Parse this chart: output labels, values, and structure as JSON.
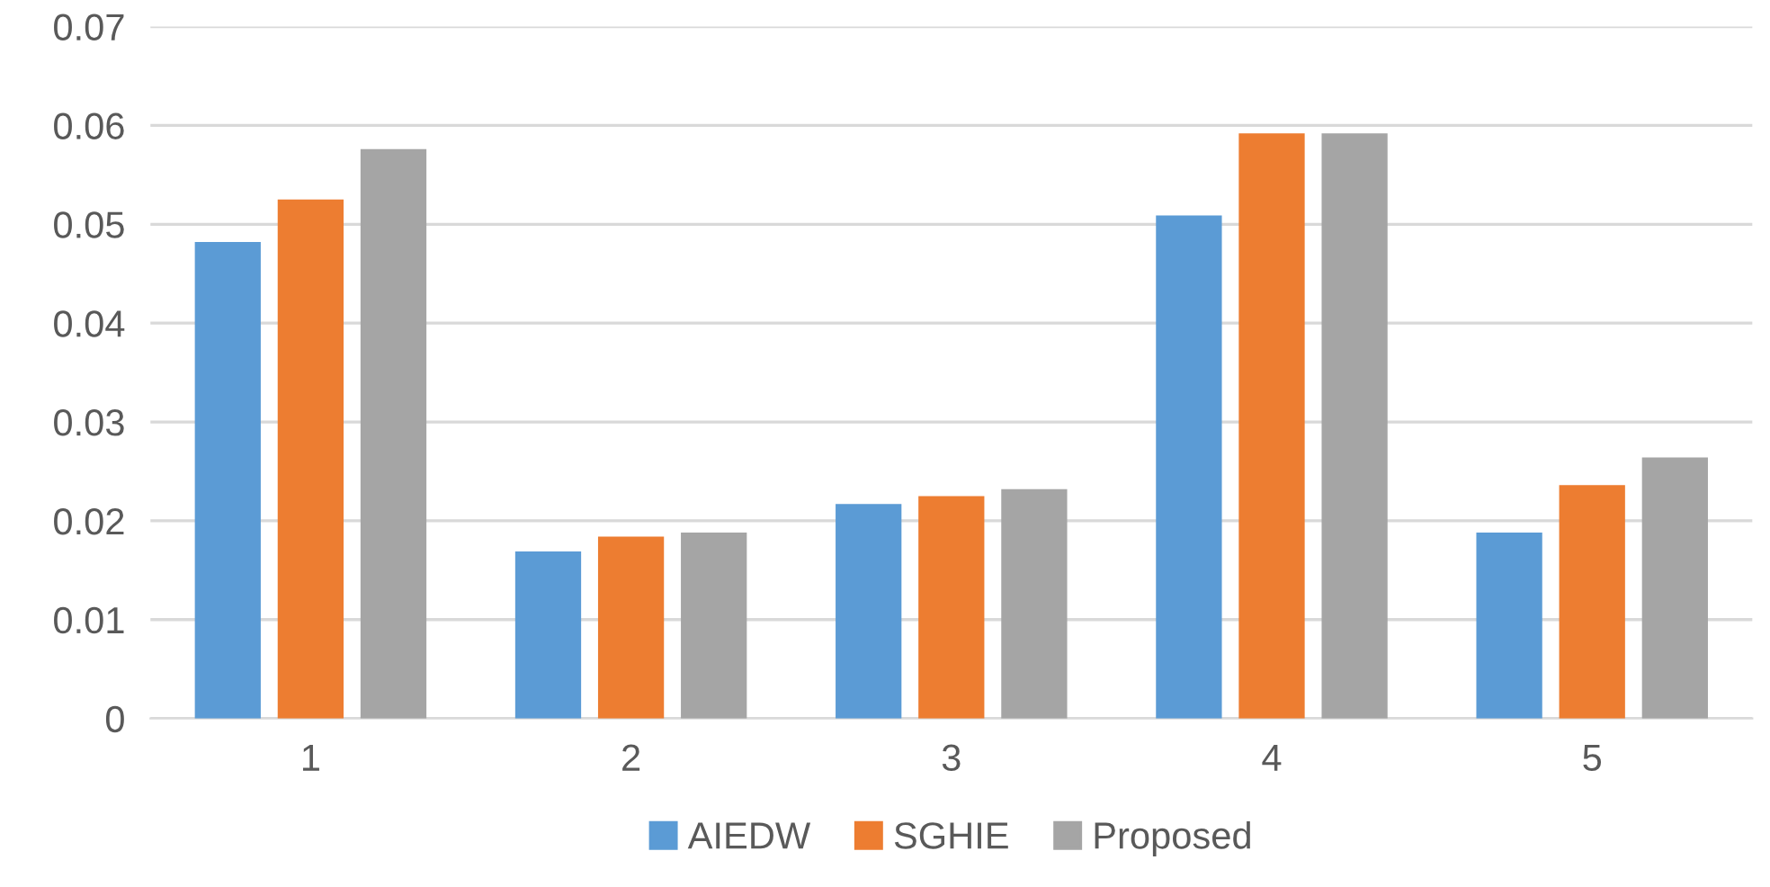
{
  "chart_data": {
    "type": "bar",
    "categories": [
      "1",
      "2",
      "3",
      "4",
      "5"
    ],
    "series": [
      {
        "name": "AIEDW",
        "color": "#5b9bd5",
        "values": [
          0.0482,
          0.0169,
          0.0217,
          0.0509,
          0.0188
        ]
      },
      {
        "name": "SGHIE",
        "color": "#ed7d31",
        "values": [
          0.0525,
          0.0184,
          0.0225,
          0.0592,
          0.0236
        ]
      },
      {
        "name": "Proposed",
        "color": "#a5a5a5",
        "values": [
          0.0576,
          0.0188,
          0.0232,
          0.0592,
          0.0264
        ]
      }
    ],
    "ylim": [
      0,
      0.07
    ],
    "yticks": [
      {
        "value": 0,
        "label": "0"
      },
      0.01,
      0.02,
      0.03,
      0.04,
      0.05,
      0.06,
      0.07
    ],
    "grid": "y",
    "legend": "bottom"
  }
}
